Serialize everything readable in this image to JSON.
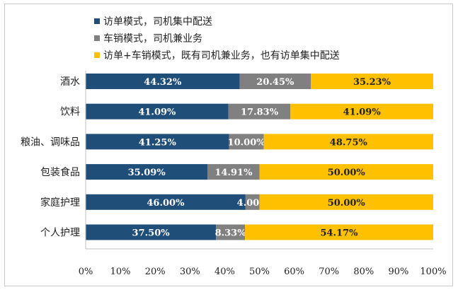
{
  "chart_data": {
    "type": "bar",
    "orientation": "horizontal",
    "stacked": true,
    "categories": [
      "酒水",
      "饮料",
      "粮油、调味品",
      "包装食品",
      "家庭护理",
      "个人护理"
    ],
    "series": [
      {
        "name": "访单模式，司机集中配送",
        "color": "#1f4e79",
        "values": [
          44.32,
          41.09,
          41.25,
          35.09,
          46.0,
          37.5
        ],
        "labels": [
          "44.32%",
          "41.09%",
          "41.25%",
          "35.09%",
          "46.00%",
          "37.50%"
        ]
      },
      {
        "name": "车销模式，司机兼业务",
        "color": "#808080",
        "values": [
          20.45,
          17.83,
          10.0,
          14.91,
          4.0,
          8.33
        ],
        "labels": [
          "20.45%",
          "17.83%",
          "10.00%",
          "14.91%",
          "4.00%",
          "8.33%"
        ]
      },
      {
        "name": "访单+车销模式，既有司机兼业务，也有访单集中配送",
        "color": "#ffc000",
        "values": [
          35.23,
          41.09,
          48.75,
          50.0,
          50.0,
          54.17
        ],
        "labels": [
          "35.23%",
          "41.09%",
          "48.75%",
          "50.00%",
          "50.00%",
          "54.17%"
        ]
      }
    ],
    "xlim": [
      0,
      100
    ],
    "x_ticks": [
      "0%",
      "10%",
      "20%",
      "30%",
      "40%",
      "50%",
      "60%",
      "70%",
      "80%",
      "90%",
      "100%"
    ],
    "grid": false,
    "legend_position": "top-left"
  }
}
